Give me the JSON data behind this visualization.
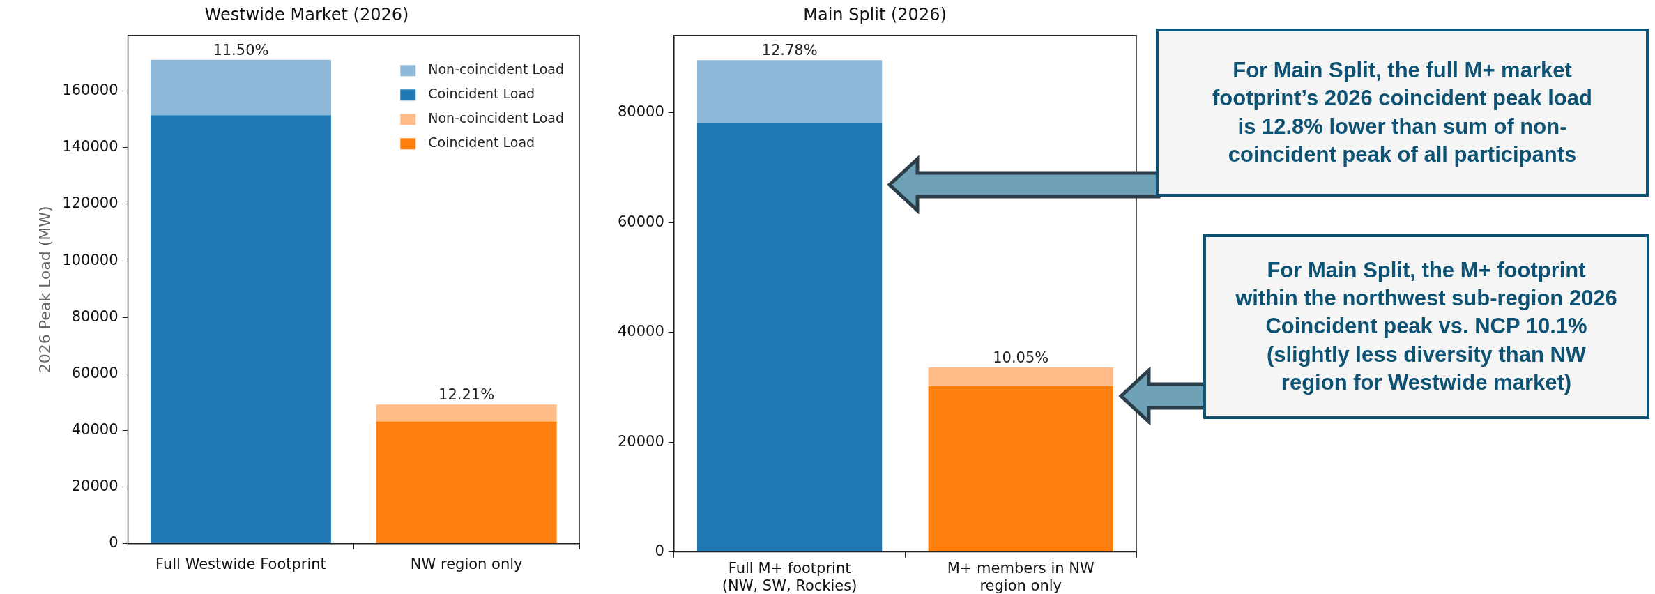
{
  "chart_data": [
    {
      "type": "bar",
      "title": "Westwide Market (2026)",
      "ylabel": "2026 Peak Load (MW)",
      "categories": [
        "Full Westwide Footprint",
        "NW region only"
      ],
      "stacked": true,
      "series": [
        {
          "name": "Coincident Load",
          "color": "#ff7f0e",
          "values": [
            null,
            43200
          ]
        },
        {
          "name": "Non-coincident Load",
          "color": "#ffbb88",
          "values": [
            null,
            6000
          ]
        },
        {
          "name": "Coincident Load",
          "color": "#1f77b4",
          "values": [
            151500,
            null
          ]
        },
        {
          "name": "Non-coincident Load",
          "color": "#8fb9d9",
          "values": [
            19600,
            null
          ]
        }
      ],
      "annotations": [
        {
          "text": "11.50%",
          "x": "Full Westwide Footprint",
          "y": 171100
        },
        {
          "text": "12.21%",
          "x": "NW region only",
          "y": 49200
        }
      ],
      "ylim": [
        0,
        179700
      ],
      "yticks": [
        0,
        20000,
        40000,
        60000,
        80000,
        100000,
        120000,
        140000,
        160000
      ],
      "legend": "top right"
    },
    {
      "type": "bar",
      "title": "Main Split (2026)",
      "categories": [
        "Full M+ footprint\n(NW, SW, Rockies)",
        "M+ members in NW\nregion only"
      ],
      "stacked": true,
      "series": [
        {
          "color": "#ff7f0e",
          "values": [
            null,
            30200
          ]
        },
        {
          "color": "#ffbb88",
          "values": [
            null,
            3400
          ]
        },
        {
          "color": "#1f77b4",
          "values": [
            78200,
            null
          ]
        },
        {
          "color": "#8fb9d9",
          "values": [
            11400,
            null
          ]
        }
      ],
      "ylim": [
        0,
        94100
      ],
      "yticks": [
        0,
        20000,
        40000,
        60000,
        80000
      ],
      "annotations": [
        {
          "text": "12.78%",
          "x": "Full M+ footprint\n(NW, SW, Rockies)",
          "y": 89600
        },
        {
          "text": "10.05%",
          "x": "M+ members in NW\nregion only",
          "y": 33600
        },
        "For Main Split, the full M+ market footprint’s 2026 coincident peak load is 12.8% lower than sum of non-coincident peak of all participants",
        "For Main Split, the M+ footprint within the northwest sub-region 2026 Coincident peak vs. NCP 10.1% (slightly less diversity than NW region for Westwide market)"
      ]
    }
  ]
}
